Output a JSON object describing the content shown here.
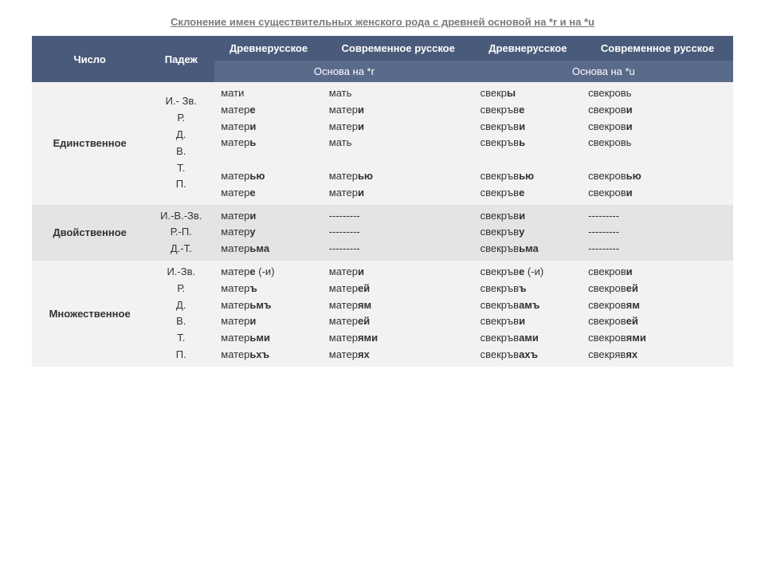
{
  "title": "Склонение имен существительных женского рода с древней основой на *r и на *u",
  "header": {
    "col1": "Число",
    "col2": "Падеж",
    "col3": "Древнерусское",
    "col4": "Современное русское",
    "col5": "Древнерусское",
    "col6": "Современное русское",
    "sub_r": "Основа на *r",
    "sub_u": "Основа на *u"
  },
  "rows": {
    "singular": {
      "label": "Единственное",
      "cases": "И.- Зв.\nР.\nД.\nВ.\nТ.\nП.",
      "c1": "мати\nматер<b>е</b>\nматер<b>и</b>\nматер<b>ь</b>\n\nматер<b>ью</b>\nматер<b>е</b>",
      "c2": "мать\nматер<b>и</b>\nматер<b>и</b>\nмать\n\nматер<b>ью</b>\nматер<b>и</b>",
      "c3": "свекр<b>ы</b>\nсвекръв<b>е</b>\nсвекръв<b>и</b>\nсвекръв<b>ь</b>\n\nсвекръв<b>ью</b>\nсвекръв<b>е</b>",
      "c4": "свекровь\nсвекров<b>и</b>\nсвекров<b>и</b>\nсвекровь\n\nсвекров<b>ью</b>\nсвекров<b>и</b>"
    },
    "dual": {
      "label": "Двойственное",
      "cases": "И.-В.-Зв.\nР.-П.\nД.-Т.",
      "c1": "матер<b>и</b>\nматер<b>у</b>\nматер<b>ьма</b>",
      "c2": "---------\n---------\n---------",
      "c3": "свекръв<b>и</b>\nсвекръв<b>у</b>\nсвекръв<b>ьма</b>",
      "c4": "---------\n---------\n---------"
    },
    "plural": {
      "label": "Множественное",
      "cases": "И.-Зв.\nР.\nД.\nВ.\nТ.\nП.",
      "c1": "матер<b>е</b> (-и)\n матер<b>ъ</b>\nматер<b>ьмъ</b>\nматер<b>и</b>\n матер<b>ьми</b>\nматер<b>ьхъ</b>",
      "c2": "матер<b>и</b>\n матер<b>ей</b>\nматер<b>ям</b>\nматер<b>ей</b>\n матер<b>ями</b>\nматер<b>ях</b>",
      "c3": "свекръв<b>е</b> (-и)\nсвекръв<b>ъ</b>\nсвекръв<b>амъ</b>\nсвекръв<b>и</b>\nсвекръв<b>ами</b>\nсвекръв<b>ахъ</b>",
      "c4": "свекров<b>и</b>\nсвекров<b>ей</b>\nсвекров<b>ям</b>\nсвекров<b>ей</b>\nсвекров<b>ями</b>\nсвекряв<b>ях</b>"
    }
  },
  "styling": {
    "header_bg": "#4a5a7a",
    "subheader_bg": "#5a6a8a",
    "header_color": "#ffffff",
    "section_bg_1": "#f2f2f2",
    "section_bg_2": "#e4e4e4",
    "font_size": 13,
    "title_color": "#7a7a7a",
    "body_color": "#333333"
  }
}
